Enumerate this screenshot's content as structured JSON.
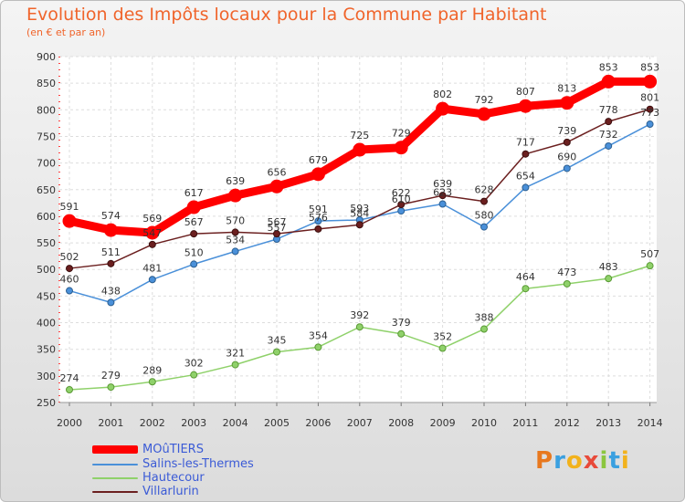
{
  "header": {
    "title": "Evolution des Impôts locaux pour la Commune par Habitant",
    "subtitle": "(en € et par an)"
  },
  "colors": {
    "title": "#f0642b",
    "legend_text": "#3b5bd6",
    "moutiers": "#ff0000",
    "salins": "#4a90d9",
    "hautecour": "#8fd16a",
    "villarlurin": "#6b1f1f"
  },
  "logo": {
    "text": "Proxiti"
  },
  "chart_data": {
    "type": "line",
    "title": "Evolution des Impôts locaux pour la Commune par Habitant",
    "subtitle": "(en € et par an)",
    "x": [
      2000,
      2001,
      2002,
      2003,
      2004,
      2005,
      2006,
      2007,
      2008,
      2009,
      2010,
      2011,
      2012,
      2013,
      2014
    ],
    "ylim": [
      250,
      900
    ],
    "yticks": [
      250,
      300,
      350,
      400,
      450,
      500,
      550,
      600,
      650,
      700,
      750,
      800,
      850,
      900
    ],
    "grid": true,
    "legend_position": "bottom-left",
    "series": [
      {
        "name": "MOûTIERS",
        "key": "moutiers",
        "values": [
          591,
          574,
          569,
          617,
          639,
          656,
          679,
          725,
          729,
          802,
          792,
          807,
          813,
          853,
          853
        ]
      },
      {
        "name": "Salins-les-Thermes",
        "key": "salins",
        "values": [
          460,
          438,
          481,
          510,
          534,
          557,
          591,
          593,
          610,
          623,
          580,
          654,
          690,
          732,
          773
        ]
      },
      {
        "name": "Hautecour",
        "key": "hautecour",
        "values": [
          274,
          279,
          289,
          302,
          321,
          345,
          354,
          392,
          379,
          352,
          388,
          464,
          473,
          483,
          507
        ]
      },
      {
        "name": "Villarlurin",
        "key": "villarlurin",
        "values": [
          502,
          511,
          547,
          567,
          570,
          567,
          576,
          584,
          622,
          639,
          628,
          717,
          739,
          778,
          801
        ]
      }
    ]
  }
}
